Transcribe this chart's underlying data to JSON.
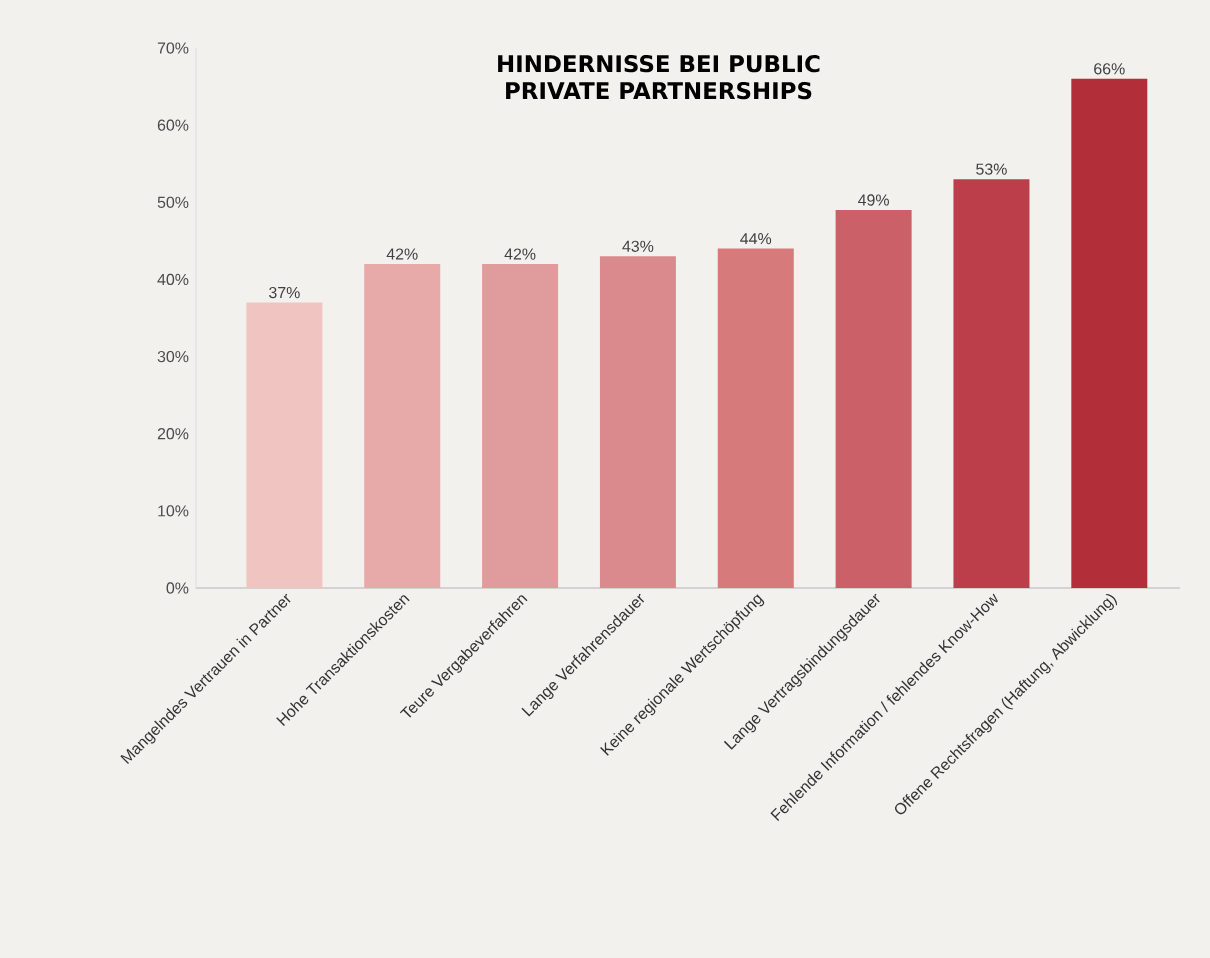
{
  "chart_data": {
    "type": "bar",
    "title": "HINDERNISSE BEI PUBLIC PRIVATE PARTNERSHIPS",
    "categories": [
      "Mangelndes Vertrauen in  Partner",
      "Hohe Transaktionskosten",
      "Teure Vergabeverfahren",
      "Lange Verfahrensdauer",
      "Keine regionale Wertschöpfung",
      "Lange Vertragsbindungsdauer",
      "Fehlende Information / fehlendes Know-How",
      "Offene Rechtsfragen (Haftung, Abwicklung)"
    ],
    "values": [
      37,
      42,
      42,
      43,
      44,
      49,
      53,
      66
    ],
    "value_labels": [
      "37%",
      "42%",
      "42%",
      "43%",
      "44%",
      "49%",
      "53%",
      "66%"
    ],
    "colors": [
      "#f0c5c1",
      "#e7aaa8",
      "#e09c9c",
      "#da8a8c",
      "#d67a7c",
      "#cc6068",
      "#bb3e4a",
      "#b22f3a"
    ],
    "ylim": [
      0,
      70
    ],
    "yticks": [
      {
        "value": 0,
        "label": "0%"
      },
      {
        "value": 10,
        "label": "10%"
      },
      {
        "value": 20,
        "label": "20%"
      },
      {
        "value": 30,
        "label": "30%"
      },
      {
        "value": 40,
        "label": "40%"
      },
      {
        "value": 50,
        "label": "50%"
      },
      {
        "value": 60,
        "label": "60%"
      },
      {
        "value": 70,
        "label": "70%"
      }
    ],
    "grid": false
  }
}
